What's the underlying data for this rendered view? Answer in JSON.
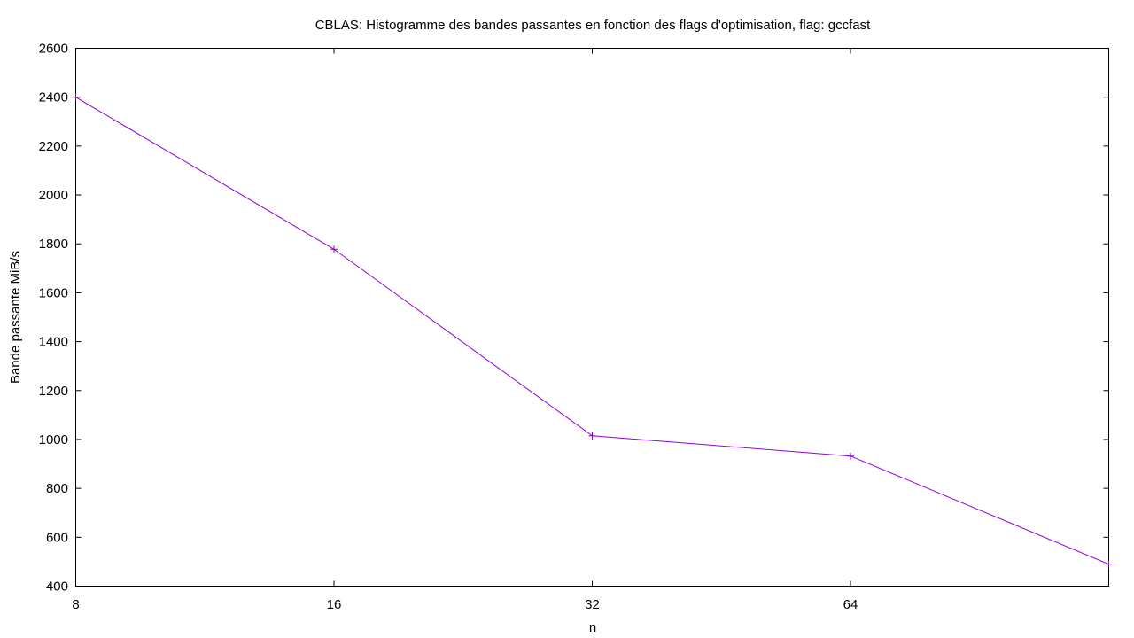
{
  "chart_data": {
    "type": "line",
    "title": "CBLAS: Histogramme des bandes passantes en fonction des flags d'optimisation, flag: gccfast",
    "xlabel": "n",
    "ylabel": "Bande passante MiB/s",
    "x_scale": "log2",
    "x": [
      8,
      16,
      32,
      64,
      128
    ],
    "x_ticks": [
      "8",
      "16",
      "32",
      "64"
    ],
    "y_ticks": [
      "400",
      "600",
      "800",
      "1000",
      "1200",
      "1400",
      "1600",
      "1800",
      "2000",
      "2200",
      "2400",
      "2600"
    ],
    "ylim": [
      400,
      2600
    ],
    "grid": false,
    "series": [
      {
        "values": [
          2400,
          1778,
          1015,
          932,
          490
        ],
        "color": "#9400d3",
        "marker": "plus"
      }
    ]
  }
}
